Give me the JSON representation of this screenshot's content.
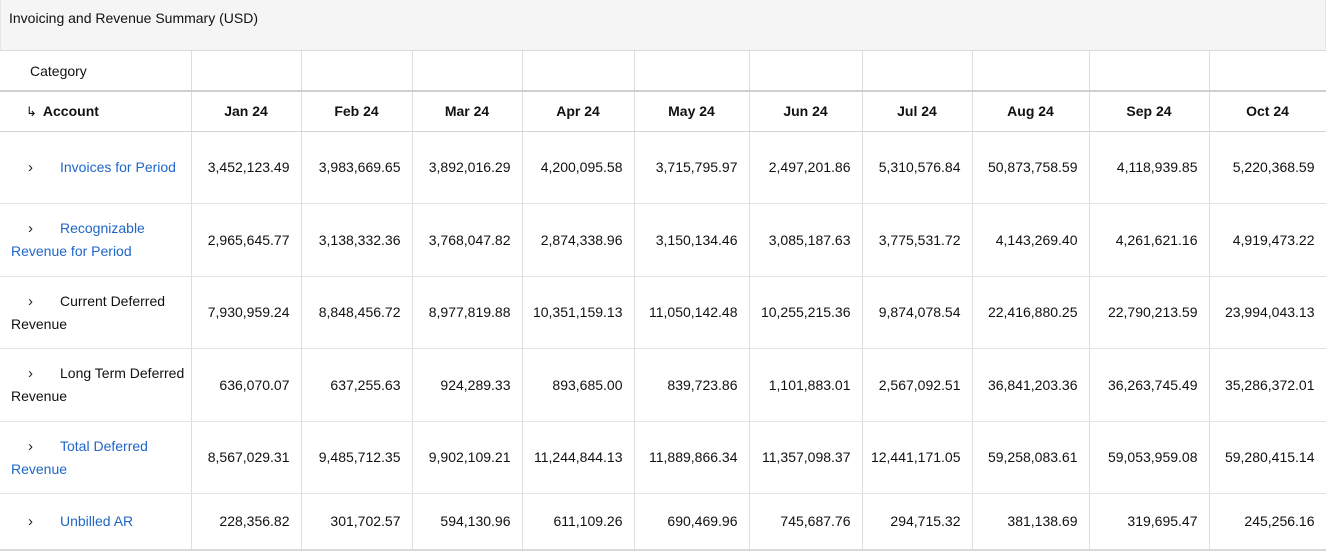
{
  "title": "Invoicing and Revenue Summary (USD)",
  "header": {
    "category_label": "Category",
    "account_arrow": "↳",
    "account_label": "Account",
    "months": [
      "Jan 24",
      "Feb 24",
      "Mar 24",
      "Apr 24",
      "May 24",
      "Jun 24",
      "Jul 24",
      "Aug 24",
      "Sep 24",
      "Oct 24"
    ]
  },
  "rows": [
    {
      "label": "Invoices for Period",
      "is_link": true,
      "values": [
        "3,452,123.49",
        "3,983,669.65",
        "3,892,016.29",
        "4,200,095.58",
        "3,715,795.97",
        "2,497,201.86",
        "5,310,576.84",
        "50,873,758.59",
        "4,118,939.85",
        "5,220,368.59"
      ]
    },
    {
      "label": "Recognizable Revenue for Period",
      "is_link": true,
      "values": [
        "2,965,645.77",
        "3,138,332.36",
        "3,768,047.82",
        "2,874,338.96",
        "3,150,134.46",
        "3,085,187.63",
        "3,775,531.72",
        "4,143,269.40",
        "4,261,621.16",
        "4,919,473.22"
      ]
    },
    {
      "label": "Current Deferred Revenue",
      "is_link": false,
      "values": [
        "7,930,959.24",
        "8,848,456.72",
        "8,977,819.88",
        "10,351,159.13",
        "11,050,142.48",
        "10,255,215.36",
        "9,874,078.54",
        "22,416,880.25",
        "22,790,213.59",
        "23,994,043.13"
      ]
    },
    {
      "label": "Long Term Deferred Revenue",
      "is_link": false,
      "values": [
        "636,070.07",
        "637,255.63",
        "924,289.33",
        "893,685.00",
        "839,723.86",
        "1,101,883.01",
        "2,567,092.51",
        "36,841,203.36",
        "36,263,745.49",
        "35,286,372.01"
      ]
    },
    {
      "label": "Total Deferred Revenue",
      "is_link": true,
      "values": [
        "8,567,029.31",
        "9,485,712.35",
        "9,902,109.21",
        "11,244,844.13",
        "11,889,866.34",
        "11,357,098.37",
        "12,441,171.05",
        "59,258,083.61",
        "59,053,959.08",
        "59,280,415.14"
      ]
    },
    {
      "label": "Unbilled AR",
      "is_link": true,
      "values": [
        "228,356.82",
        "301,702.57",
        "594,130.96",
        "611,109.26",
        "690,469.96",
        "745,687.76",
        "294,715.32",
        "381,138.69",
        "319,695.47",
        "245,256.16"
      ]
    }
  ],
  "icons": {
    "expand": "chevron-right-icon",
    "sub_account": "return-arrow-icon"
  },
  "colors": {
    "link": "#1f66c9",
    "header_bg": "#f5f5f5"
  },
  "chevron_glyph": "›"
}
